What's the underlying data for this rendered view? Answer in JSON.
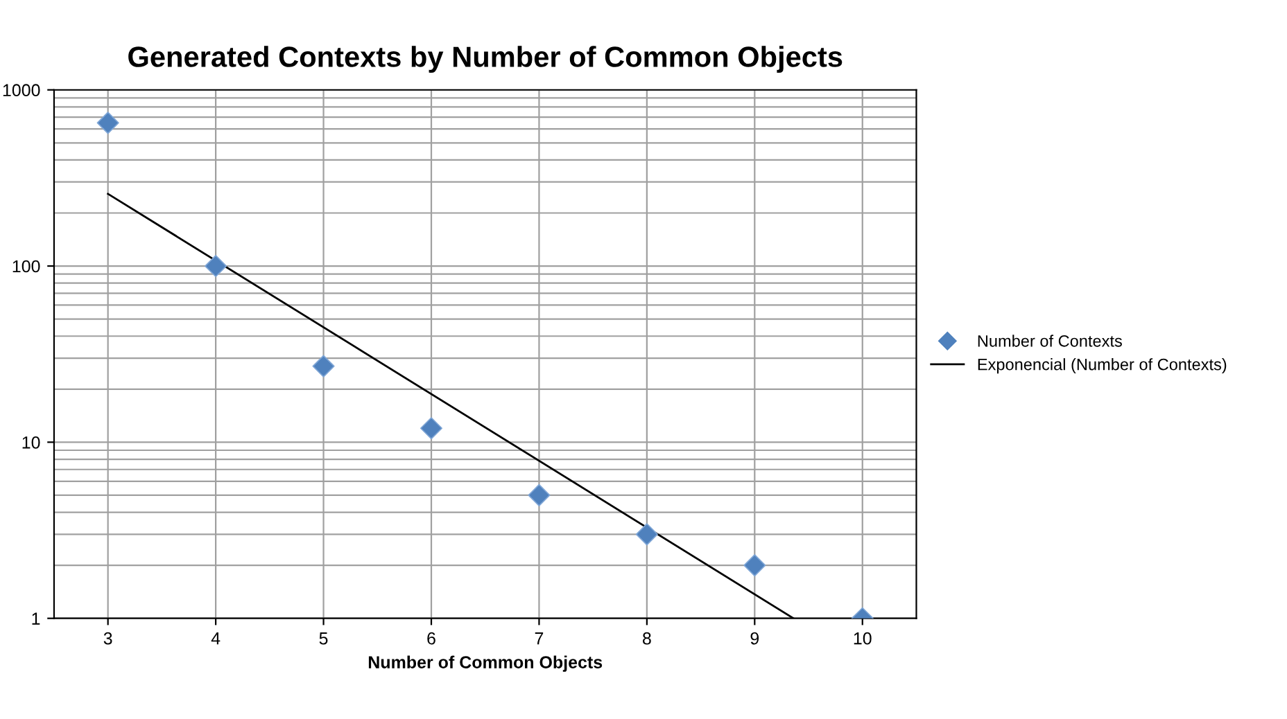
{
  "chart_data": {
    "type": "scatter",
    "title": "Generated Contexts by Number of Common Objects",
    "xlabel": "Number of Common Objects",
    "series": [
      {
        "name": "Number of Contexts",
        "color": "#4f81bd",
        "marker": "diamond",
        "x": [
          3,
          4,
          5,
          6,
          7,
          8,
          9,
          10
        ],
        "values": [
          650,
          100,
          27,
          12,
          5,
          3,
          2,
          1
        ]
      },
      {
        "name": "Exponencial (Number of Contexts)",
        "type": "line",
        "color": "#000000",
        "line_style": "solid",
        "x": [
          3,
          9.36
        ],
        "values": [
          257,
          1
        ]
      }
    ],
    "xlim": [
      2.5,
      10.5
    ],
    "xticks": [
      3,
      4,
      5,
      6,
      7,
      8,
      9,
      10
    ],
    "log": "y",
    "ylim": [
      1,
      1000
    ],
    "yticks": [
      1,
      10,
      100,
      1000
    ],
    "grid": true,
    "legend": "right"
  }
}
